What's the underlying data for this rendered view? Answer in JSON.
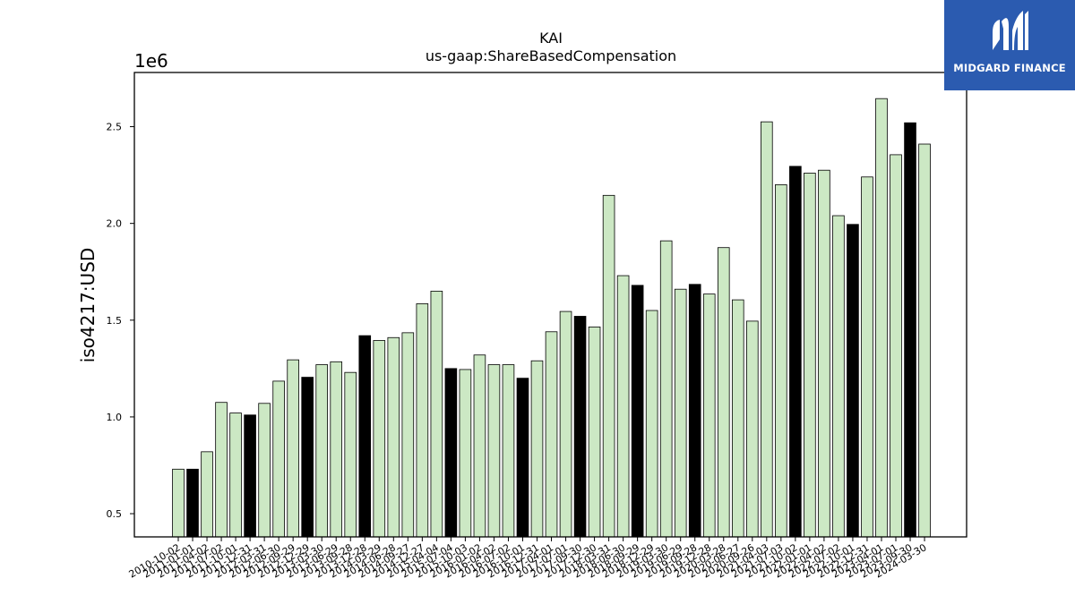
{
  "logo": {
    "text": "MIDGARD FINANCE"
  },
  "chart_data": {
    "type": "bar",
    "title": "KAI",
    "subtitle": "us-gaap:ShareBasedCompensation",
    "xlabel": "",
    "ylabel": "iso4217:USD",
    "offset_text": "1e6",
    "ylim": [
      0.38,
      2.78
    ],
    "yticks": [
      0.5,
      1.0,
      1.5,
      2.0,
      2.5
    ],
    "ytick_labels": [
      "0.5",
      "1.0",
      "1.5",
      "2.0",
      "2.5"
    ],
    "colors": {
      "bar": "#cce8c4",
      "highlight": "#000000",
      "edge": "#000000"
    },
    "categories": [
      "2010-10-02",
      "2011-01-01",
      "2011-04-02",
      "2011-07-02",
      "2011-10-01",
      "2011-12-31",
      "2012-03-31",
      "2012-06-30",
      "2012-09-29",
      "2012-12-29",
      "2013-03-30",
      "2013-06-29",
      "2013-09-28",
      "2013-12-28",
      "2014-03-29",
      "2014-06-28",
      "2014-09-27",
      "2014-12-27",
      "2015-04-04",
      "2015-07-04",
      "2015-10-03",
      "2016-01-02",
      "2016-04-02",
      "2016-07-02",
      "2016-10-01",
      "2016-12-31",
      "2017-04-01",
      "2017-07-01",
      "2017-09-30",
      "2017-12-30",
      "2018-03-31",
      "2018-06-30",
      "2018-09-29",
      "2018-12-29",
      "2019-03-30",
      "2019-06-29",
      "2019-09-28",
      "2019-12-28",
      "2020-03-28",
      "2020-06-27",
      "2020-09-26",
      "2021-04-03",
      "2021-07-03",
      "2021-10-02",
      "2022-01-01",
      "2022-04-02",
      "2022-07-02",
      "2022-10-01",
      "2022-12-31",
      "2023-04-01",
      "2023-07-01",
      "2023-09-30",
      "2024-03-30"
    ],
    "tick_labels": [
      "2010-10-02",
      "2011-01-01",
      "2011-04-02",
      "2011-07-02",
      "2011-10-01",
      "2011-12-31",
      "2012-03-31",
      "2012-06-30",
      "2012-09-29",
      "2012-12-29",
      "2013-03-30",
      "2013-06-29",
      "2013-09-28",
      "2013-12-28",
      "2014-03-29",
      "2014-06-28",
      "2014-09-27",
      "2014-12-27",
      "2015-04-04",
      "2015-07-04",
      "2015-10-03",
      "2016-01-02",
      "2016-04-02",
      "2016-07-02",
      "2016-10-01",
      "2016-12-31",
      "2017-04-01",
      "2017-07-01",
      "2017-09-30",
      "2017-12-30",
      "2018-03-31",
      "2018-06-30",
      "2018-09-29",
      "2018-12-29",
      "2019-03-30",
      "2019-06-29",
      "2019-09-28",
      "2019-12-28",
      "2020-03-28",
      "2020-06-27",
      "2020-09-26",
      "2021-04-03",
      "2021-07-03",
      "2021-10-02",
      "2022-01-01",
      "2022-04-02",
      "2022-07-02",
      "2022-10-01",
      "2022-12-31",
      "2023-04-01",
      "2023-07-01",
      "2023-09-30",
      "2024-03-30"
    ],
    "values": [
      0.73,
      0.73,
      0.82,
      1.075,
      1.02,
      1.01,
      1.07,
      1.185,
      1.295,
      1.205,
      1.27,
      1.285,
      1.23,
      1.42,
      1.395,
      1.41,
      1.435,
      1.585,
      1.65,
      1.25,
      1.245,
      1.32,
      1.27,
      1.27,
      1.2,
      1.29,
      1.44,
      1.545,
      1.52,
      1.465,
      2.145,
      1.73,
      1.68,
      1.55,
      1.91,
      1.66,
      1.685,
      1.635,
      1.875,
      1.605,
      1.495,
      2.525,
      2.2,
      2.295,
      2.26,
      2.275,
      2.04,
      1.995,
      2.24,
      2.645,
      2.355,
      2.52,
      2.41
    ],
    "highlighted": [
      1,
      5,
      9,
      13,
      19,
      24,
      28,
      32,
      36,
      43,
      47,
      51
    ]
  }
}
